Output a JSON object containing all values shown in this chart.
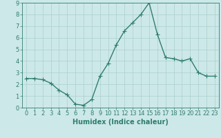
{
  "x": [
    0,
    1,
    2,
    3,
    4,
    5,
    6,
    7,
    8,
    9,
    10,
    11,
    12,
    13,
    14,
    15,
    16,
    17,
    18,
    19,
    20,
    21,
    22,
    23
  ],
  "y": [
    2.5,
    2.5,
    2.4,
    2.1,
    1.5,
    1.1,
    0.3,
    0.2,
    0.7,
    2.7,
    3.8,
    5.4,
    6.6,
    7.3,
    8.0,
    9.0,
    6.3,
    4.3,
    4.2,
    4.0,
    4.2,
    3.0,
    2.7,
    2.7
  ],
  "line_color": "#2e7d6e",
  "marker": "+",
  "marker_size": 4,
  "line_width": 1.0,
  "bg_color": "#cde8e8",
  "grid_color": "#aacfcf",
  "xlabel": "Humidex (Indice chaleur)",
  "xlabel_fontsize": 7,
  "tick_fontsize": 6,
  "ylim": [
    0,
    9
  ],
  "xlim": [
    -0.5,
    23.5
  ],
  "yticks": [
    0,
    1,
    2,
    3,
    4,
    5,
    6,
    7,
    8,
    9
  ],
  "xticks": [
    0,
    1,
    2,
    3,
    4,
    5,
    6,
    7,
    8,
    9,
    10,
    11,
    12,
    13,
    14,
    15,
    16,
    17,
    18,
    19,
    20,
    21,
    22,
    23
  ]
}
